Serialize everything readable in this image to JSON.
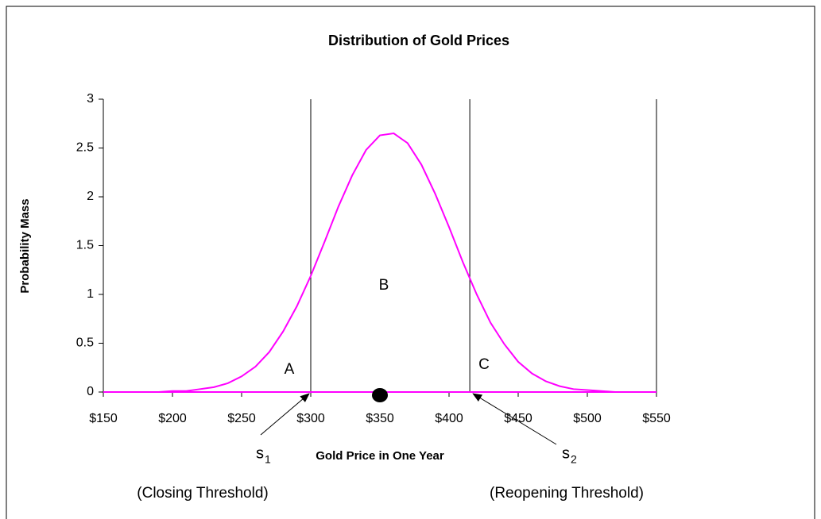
{
  "chart_data": {
    "type": "line",
    "title": "Distribution of Gold Prices",
    "x_label": "Gold Price in One Year",
    "y_label": "Probability Mass",
    "x": [
      150,
      160,
      170,
      180,
      190,
      200,
      210,
      220,
      230,
      240,
      250,
      260,
      270,
      280,
      290,
      300,
      310,
      320,
      330,
      340,
      350,
      360,
      370,
      380,
      390,
      400,
      410,
      420,
      430,
      440,
      450,
      460,
      470,
      480,
      490,
      500,
      510,
      520,
      530,
      540,
      550
    ],
    "series": [
      {
        "color": "#ff00ff",
        "values": [
          0,
          0,
          0,
          0,
          0,
          0.01,
          0.01,
          0.03,
          0.05,
          0.09,
          0.16,
          0.26,
          0.41,
          0.62,
          0.88,
          1.19,
          1.54,
          1.9,
          2.22,
          2.48,
          2.63,
          2.65,
          2.55,
          2.33,
          2.03,
          1.69,
          1.33,
          1.0,
          0.71,
          0.49,
          0.31,
          0.19,
          0.11,
          0.06,
          0.03,
          0.02,
          0.01,
          0,
          0,
          0,
          0
        ]
      }
    ],
    "xlim": [
      150,
      550
    ],
    "xticks": [
      {
        "value": 150,
        "label": "$150"
      },
      {
        "value": 200,
        "label": "$200"
      },
      {
        "value": 250,
        "label": "$250"
      },
      {
        "value": 300,
        "label": "$300"
      },
      {
        "value": 350,
        "label": "$350"
      },
      {
        "value": 400,
        "label": "$400"
      },
      {
        "value": 450,
        "label": "$450"
      },
      {
        "value": 500,
        "label": "$500"
      },
      {
        "value": 550,
        "label": "$550"
      }
    ],
    "ylim": [
      0,
      3
    ],
    "yticks": [
      0,
      0.5,
      1,
      1.5,
      2,
      2.5,
      3
    ],
    "thresholds": [
      300,
      415
    ],
    "marker_x": 350,
    "regions": [
      "A",
      "B",
      "C"
    ],
    "threshold_labels": [
      {
        "symbol": "s",
        "sub": "1",
        "text": "(Closing Threshold)"
      },
      {
        "symbol": "s",
        "sub": "2",
        "text": "(Reopening Threshold)"
      }
    ]
  }
}
